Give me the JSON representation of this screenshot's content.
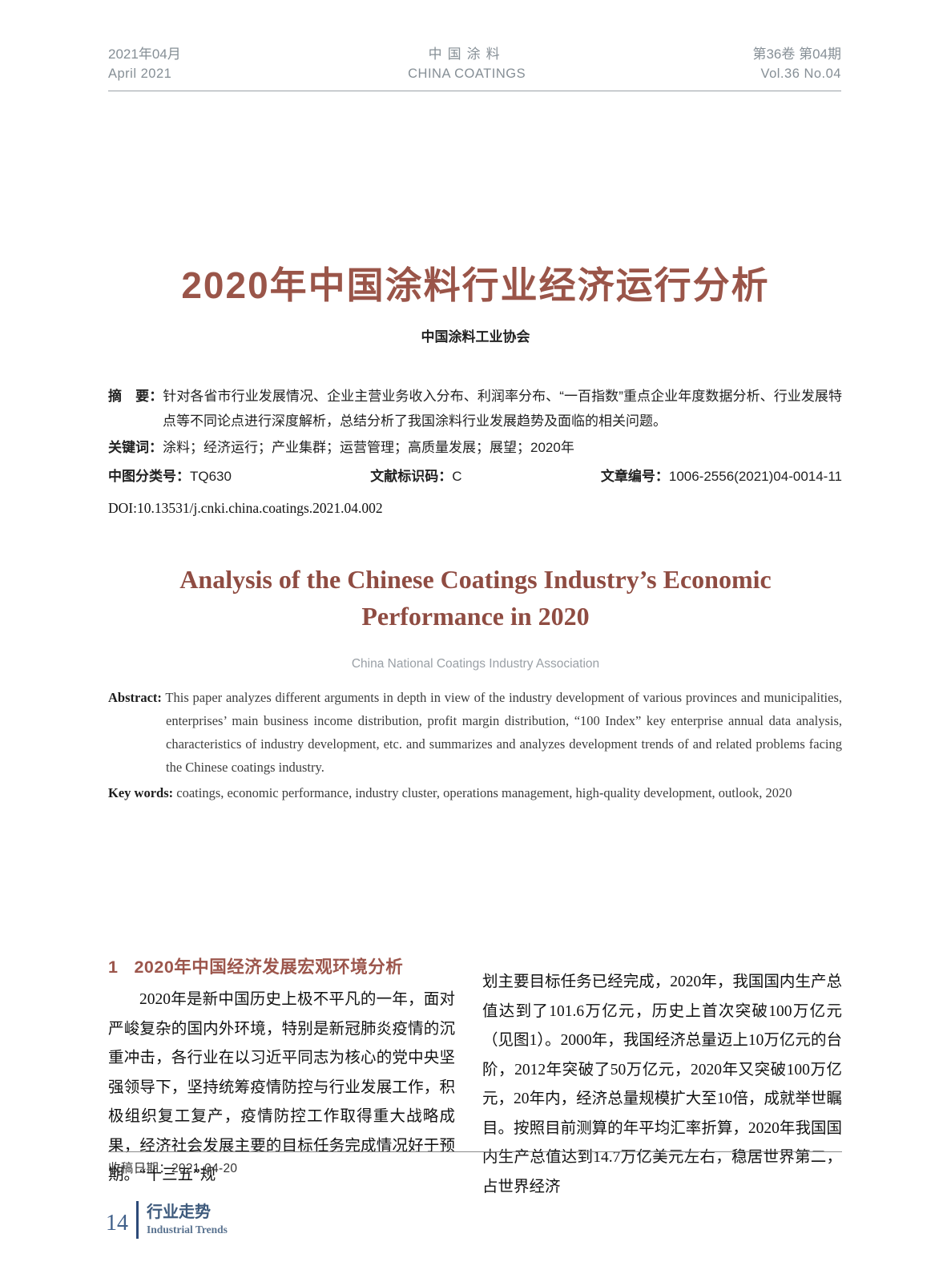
{
  "header": {
    "date_cn": "2021年04月",
    "date_en": "April 2021",
    "journal_cn": "中国涂料",
    "journal_en": "CHINA COATINGS",
    "volume_cn": "第36卷 第04期",
    "volume_en": "Vol.36  No.04"
  },
  "title": {
    "cn": "2020年中国涂料行业经济运行分析",
    "author_cn": "中国涂料工业协会",
    "en": "Analysis of the Chinese Coatings Industry’s Economic Performance in 2020",
    "author_en": "China National Coatings Industry Association"
  },
  "abstract_cn": {
    "label": "摘　要：",
    "text": "针对各省市行业发展情况、企业主营业务收入分布、利润率分布、“一百指数”重点企业年度数据分析、行业发展特点等不同论点进行深度解析，总结分析了我国涂料行业发展趋势及面临的相关问题。",
    "keywords_label": "关键词：",
    "keywords": "涂料；经济运行；产业集群；运营管理；高质量发展；展望；2020年",
    "clc_label": "中图分类号：",
    "clc": "TQ630",
    "doc_code_label": "文献标识码：",
    "doc_code": "C",
    "article_id_label": "文章编号：",
    "article_id": "1006-2556(2021)04-0014-11",
    "doi": "DOI:10.13531/j.cnki.china.coatings.2021.04.002"
  },
  "abstract_en": {
    "label": "Abstract:",
    "text": "This paper analyzes different arguments in depth in view of the industry development of various provinces and municipalities, enterprises’ main business income distribution, profit margin distribution, “100 Index” key enterprise annual data analysis, characteristics of industry development, etc. and summarizes and analyzes development trends of and related problems facing the Chinese coatings industry.",
    "keywords_label": "Key words:",
    "keywords": "coatings, economic performance, industry cluster, operations management, high-quality development, outlook, 2020"
  },
  "body": {
    "section1_number": "1",
    "section1_title": "2020年中国经济发展宏观环境分析",
    "col_left_text": "2020年是新中国历史上极不平凡的一年，面对严峻复杂的国内外环境，特别是新冠肺炎疫情的沉重冲击，各行业在以习近平同志为核心的党中央坚强领导下，坚持统筹疫情防控与行业发展工作，积极组织复工复产，疫情防控工作取得重大战略成果，经济社会发展主要的目标任务完成情况好于预期。“十三五”规",
    "col_right_text": "划主要目标任务已经完成，2020年，我国国内生产总值达到了101.6万亿元，历史上首次突破100万亿元（见图1）。2000年，我国经济总量迈上10万亿元的台阶，2012年突破了50万亿元，2020年又突破100万亿元，20年内，经济总量规模扩大至10倍，成就举世瞩目。按照目前测算的年平均汇率折算，2020年我国国内生产总值达到14.7万亿美元左右，稳居世界第二，占世界经济"
  },
  "footnote": {
    "received_label": "收稿日期：",
    "received_date": "2021-04-20"
  },
  "footer": {
    "page_number": "14",
    "column_cn": "行业走势",
    "column_en": "Industrial Trends"
  },
  "colors": {
    "accent_red": "#9a5549",
    "header_gray": "#868f96",
    "footer_blue": "#3e5a7c",
    "text": "#1c1c1c"
  }
}
